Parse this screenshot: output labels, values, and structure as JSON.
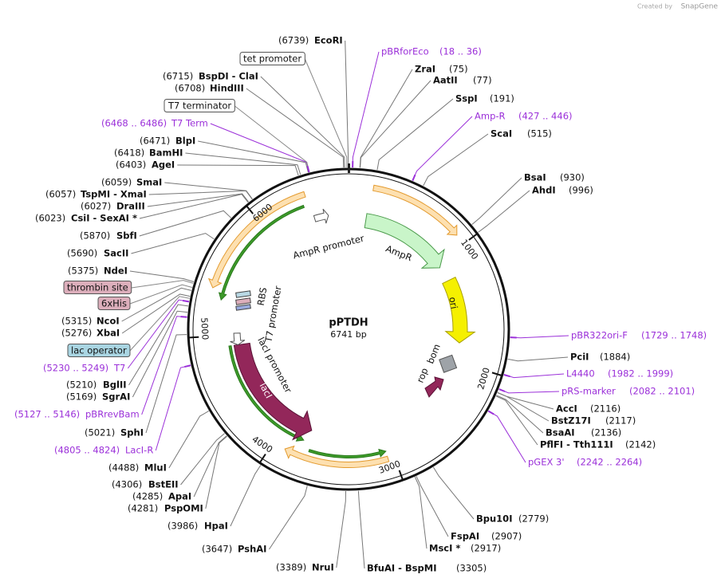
{
  "watermark": {
    "prefix": "Created by",
    "brand": "SnapGene"
  },
  "map": {
    "name": "pPTDH",
    "length": {
      "value": 6741,
      "label": "6741 bp"
    },
    "ring_ticks": [
      1000,
      2000,
      3000,
      4000,
      5000,
      6000
    ]
  },
  "sites": [
    {
      "name": "EcoRI",
      "pos": {
        "value": 6739,
        "label": "(6739)"
      }
    },
    {
      "name": "pBRforEco",
      "pos": {
        "start": 18,
        "end": 36,
        "label": "(18 .. 36)"
      },
      "color": "#9b30d9"
    },
    {
      "name": "ZraI",
      "pos": {
        "value": 75,
        "label": "(75)"
      }
    },
    {
      "name": "AatII",
      "pos": {
        "value": 77,
        "label": "(77)"
      }
    },
    {
      "name": "SspI",
      "pos": {
        "value": 191,
        "label": "(191)"
      }
    },
    {
      "name": "Amp-R",
      "pos": {
        "start": 427,
        "end": 446,
        "label": "(427 .. 446)"
      },
      "color": "#9b30d9"
    },
    {
      "name": "ScaI",
      "pos": {
        "value": 515,
        "label": "(515)"
      }
    },
    {
      "name": "BsaI",
      "pos": {
        "value": 930,
        "label": "(930)"
      }
    },
    {
      "name": "AhdI",
      "pos": {
        "value": 996,
        "label": "(996)"
      }
    },
    {
      "name": "pBR322ori-F",
      "pos": {
        "start": 1729,
        "end": 1748,
        "label": "(1729 .. 1748)"
      },
      "color": "#9b30d9"
    },
    {
      "name": "PciI",
      "pos": {
        "value": 1884,
        "label": "(1884)"
      }
    },
    {
      "name": "L4440",
      "pos": {
        "start": 1982,
        "end": 1999,
        "label": "(1982 .. 1999)"
      },
      "color": "#9b30d9"
    },
    {
      "name": "pRS-marker",
      "pos": {
        "start": 2082,
        "end": 2101,
        "label": "(2082 .. 2101)"
      },
      "color": "#9b30d9"
    },
    {
      "name": "AccI",
      "pos": {
        "value": 2116,
        "label": "(2116)"
      }
    },
    {
      "name": "BstZ17I",
      "pos": {
        "value": 2117,
        "label": "(2117)"
      }
    },
    {
      "name": "BsaAI",
      "pos": {
        "value": 2136,
        "label": "(2136)"
      }
    },
    {
      "name": "PflFI - Tth111I",
      "pos": {
        "value": 2142,
        "label": "(2142)"
      }
    },
    {
      "name": "pGEX 3'",
      "pos": {
        "start": 2242,
        "end": 2264,
        "label": "(2242 .. 2264)"
      },
      "color": "#9b30d9"
    },
    {
      "name": "Bpu10I",
      "pos": {
        "value": 2779,
        "label": "(2779)"
      }
    },
    {
      "name": "FspAI",
      "pos": {
        "value": 2907,
        "label": "(2907)"
      }
    },
    {
      "name": "MscI *",
      "pos": {
        "value": 2917,
        "label": "(2917)"
      }
    },
    {
      "name": "BfuAI - BspMI",
      "pos": {
        "value": 3305,
        "label": "(3305)"
      }
    },
    {
      "name": "NruI",
      "pos": {
        "value": 3389,
        "label": "(3389)"
      }
    },
    {
      "name": "PshAI",
      "pos": {
        "value": 3647,
        "label": "(3647)"
      }
    },
    {
      "name": "HpaI",
      "pos": {
        "value": 3986,
        "label": "(3986)"
      }
    },
    {
      "name": "PspOMI",
      "pos": {
        "value": 4281,
        "label": "(4281)"
      }
    },
    {
      "name": "ApaI",
      "pos": {
        "value": 4285,
        "label": "(4285)"
      }
    },
    {
      "name": "BstEII",
      "pos": {
        "value": 4306,
        "label": "(4306)"
      }
    },
    {
      "name": "MluI",
      "pos": {
        "value": 4488,
        "label": "(4488)"
      }
    },
    {
      "name": "LacI-R",
      "pos": {
        "start": 4805,
        "end": 4824,
        "label": "(4805 .. 4824)"
      },
      "color": "#9b30d9"
    },
    {
      "name": "SphI",
      "pos": {
        "value": 5021,
        "label": "(5021)"
      }
    },
    {
      "name": "pBRrevBam",
      "pos": {
        "start": 5127,
        "end": 5146,
        "label": "(5127 .. 5146)"
      },
      "color": "#9b30d9"
    },
    {
      "name": "SgrAI",
      "pos": {
        "value": 5169,
        "label": "(5169)"
      }
    },
    {
      "name": "BglII",
      "pos": {
        "value": 5210,
        "label": "(5210)"
      }
    },
    {
      "name": "T7",
      "pos": {
        "start": 5230,
        "end": 5249,
        "label": "(5230 .. 5249)"
      },
      "color": "#9b30d9"
    },
    {
      "name": "lac operator",
      "box": "#a9d5e2"
    },
    {
      "name": "XbaI",
      "pos": {
        "value": 5276,
        "label": "(5276)"
      }
    },
    {
      "name": "NcoI",
      "pos": {
        "value": 5315,
        "label": "(5315)"
      }
    },
    {
      "name": "6xHis",
      "box": "#dcaebb"
    },
    {
      "name": "thrombin site",
      "box": "#dcaebb"
    },
    {
      "name": "NdeI",
      "pos": {
        "value": 5375,
        "label": "(5375)"
      }
    },
    {
      "name": "SacII",
      "pos": {
        "value": 5690,
        "label": "(5690)"
      }
    },
    {
      "name": "SbfI",
      "pos": {
        "value": 5870,
        "label": "(5870)"
      }
    },
    {
      "name": "CsiI - SexAI *",
      "pos": {
        "value": 6023,
        "label": "(6023)"
      }
    },
    {
      "name": "DraIII",
      "pos": {
        "value": 6027,
        "label": "(6027)"
      }
    },
    {
      "name": "TspMI - XmaI",
      "pos": {
        "value": 6057,
        "label": "(6057)"
      }
    },
    {
      "name": "SmaI",
      "pos": {
        "value": 6059,
        "label": "(6059)"
      }
    },
    {
      "name": "AgeI",
      "pos": {
        "value": 6403,
        "label": "(6403)"
      }
    },
    {
      "name": "BamHI",
      "pos": {
        "value": 6418,
        "label": "(6418)"
      }
    },
    {
      "name": "BlpI",
      "pos": {
        "value": 6471,
        "label": "(6471)"
      }
    },
    {
      "name": "T7 Term",
      "pos": {
        "start": 6468,
        "end": 6486,
        "label": "(6468 .. 6486)"
      },
      "color": "#9b30d9"
    },
    {
      "name": "T7 terminator",
      "box": "#ffffff"
    },
    {
      "name": "HindIII",
      "pos": {
        "value": 6708,
        "label": "(6708)"
      }
    },
    {
      "name": "BspDI - ClaI",
      "pos": {
        "value": 6715,
        "label": "(6715)"
      }
    },
    {
      "name": "tet promoter",
      "box": "#ffffff"
    }
  ],
  "features": [
    "AmpR promoter",
    "AmpR",
    "ori",
    "bom",
    "rop",
    "lacI",
    "lacI promoter",
    "RBS",
    "T7 promoter"
  ]
}
